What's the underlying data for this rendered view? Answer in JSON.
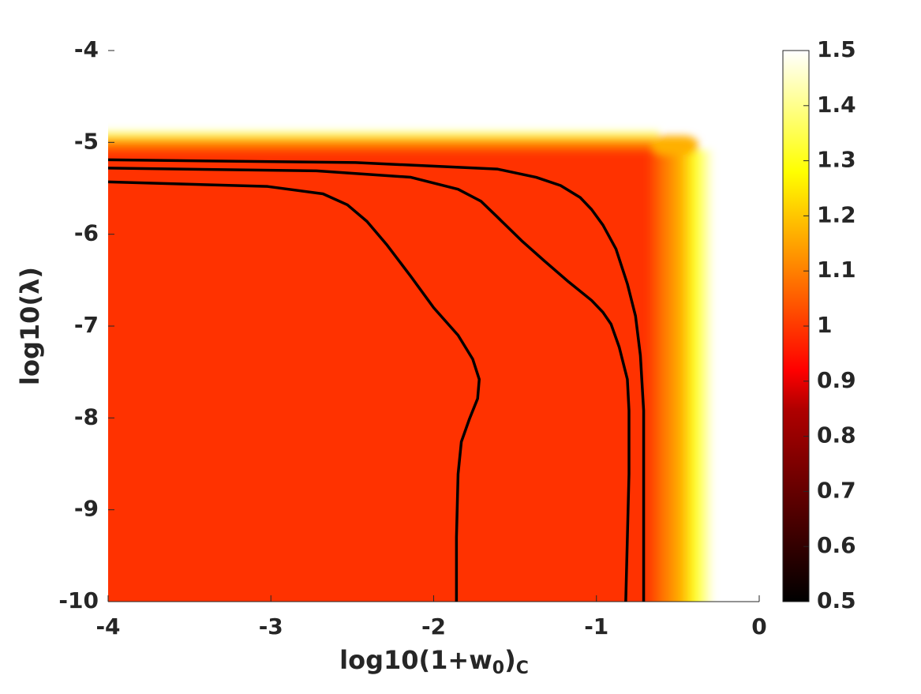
{
  "chart_data": {
    "type": "contour",
    "xlabel": [
      "log10(1+w",
      "0",
      ")",
      "C"
    ],
    "ylabel": "log10(λ)",
    "xlim": [
      -4,
      0
    ],
    "xticks": [
      -4,
      -3,
      -2,
      -1,
      0
    ],
    "ylim": [
      -10,
      -4
    ],
    "yticks": [
      -10,
      -9,
      -8,
      -7,
      -6,
      -5,
      -4
    ],
    "colorbar": {
      "lim": [
        0.5,
        1.5
      ],
      "ticks": [
        0.5,
        0.6,
        0.7,
        0.8,
        0.9,
        1,
        1.1,
        1.2,
        1.3,
        1.4,
        1.5
      ]
    },
    "series": [
      {
        "color": "#000000",
        "x": [
          -4,
          -3.02,
          -2.68,
          -2.53,
          -2.41,
          -2.29,
          -2.14,
          -2.0,
          -1.85,
          -1.76,
          -1.72,
          -1.73,
          -1.78,
          -1.83,
          -1.85,
          -1.86,
          -1.86
        ],
        "values": [
          -5.43,
          -5.48,
          -5.56,
          -5.68,
          -5.86,
          -6.11,
          -6.46,
          -6.8,
          -7.1,
          -7.36,
          -7.58,
          -7.79,
          -8.01,
          -8.26,
          -8.61,
          -9.3,
          -10
        ]
      },
      {
        "color": "#000000",
        "x": [
          -4,
          -2.72,
          -2.14,
          -1.85,
          -1.71,
          -1.61,
          -1.46,
          -1.32,
          -1.17,
          -1.03,
          -0.96,
          -0.91,
          -0.86,
          -0.81,
          -0.8,
          -0.8,
          -0.82
        ],
        "values": [
          -5.28,
          -5.31,
          -5.38,
          -5.51,
          -5.64,
          -5.81,
          -6.07,
          -6.29,
          -6.52,
          -6.72,
          -6.85,
          -6.98,
          -7.23,
          -7.58,
          -7.92,
          -8.61,
          -10
        ]
      },
      {
        "color": "#000000",
        "x": [
          -4,
          -2.48,
          -1.61,
          -1.37,
          -1.22,
          -1.1,
          -1.03,
          -0.96,
          -0.88,
          -0.81,
          -0.76,
          -0.73,
          -0.71,
          -0.71
        ],
        "values": [
          -5.19,
          -5.22,
          -5.29,
          -5.38,
          -5.47,
          -5.6,
          -5.73,
          -5.9,
          -6.16,
          -6.54,
          -6.89,
          -7.32,
          -7.92,
          -10
        ]
      }
    ]
  }
}
